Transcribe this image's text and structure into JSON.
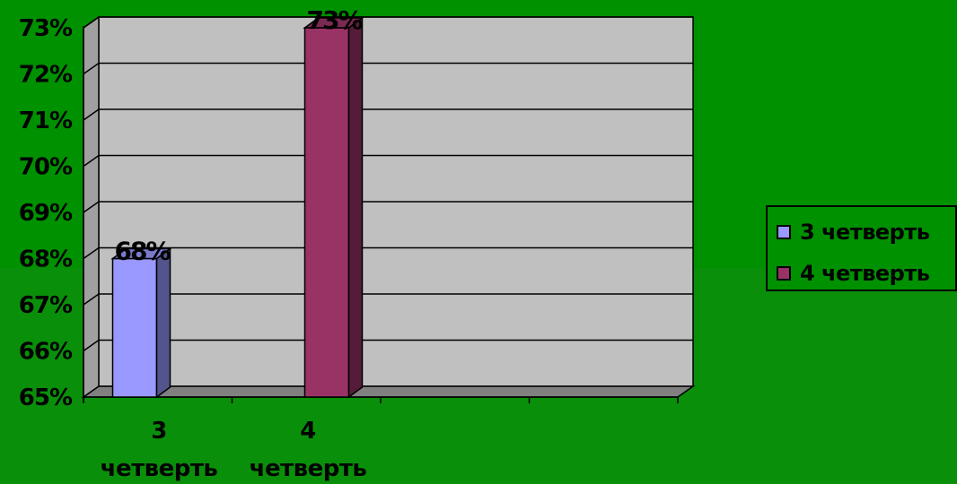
{
  "chart_data": {
    "type": "bar",
    "categories": [
      "3 четверть",
      "4 четверть"
    ],
    "category_lines": [
      [
        "3",
        "четверть"
      ],
      [
        "4",
        "четверть"
      ]
    ],
    "series": [
      {
        "name": "3 четверть",
        "color": "#9999ff",
        "values": [
          68,
          null
        ],
        "labels": [
          "68%",
          ""
        ]
      },
      {
        "name": "4 четверть",
        "color": "#993366",
        "values": [
          null,
          73
        ],
        "labels": [
          "",
          "73%"
        ]
      }
    ],
    "ylim": [
      65,
      73
    ],
    "y_ticks": [
      "65%",
      "66%",
      "67%",
      "68%",
      "69%",
      "70%",
      "71%",
      "72%",
      "73%"
    ],
    "title": "",
    "xlabel": "",
    "ylabel": "",
    "grid": true,
    "legend_position": "right",
    "colors": {
      "background": "#009100",
      "plot_area": "#c0c0c0",
      "floor": "#808080"
    }
  }
}
